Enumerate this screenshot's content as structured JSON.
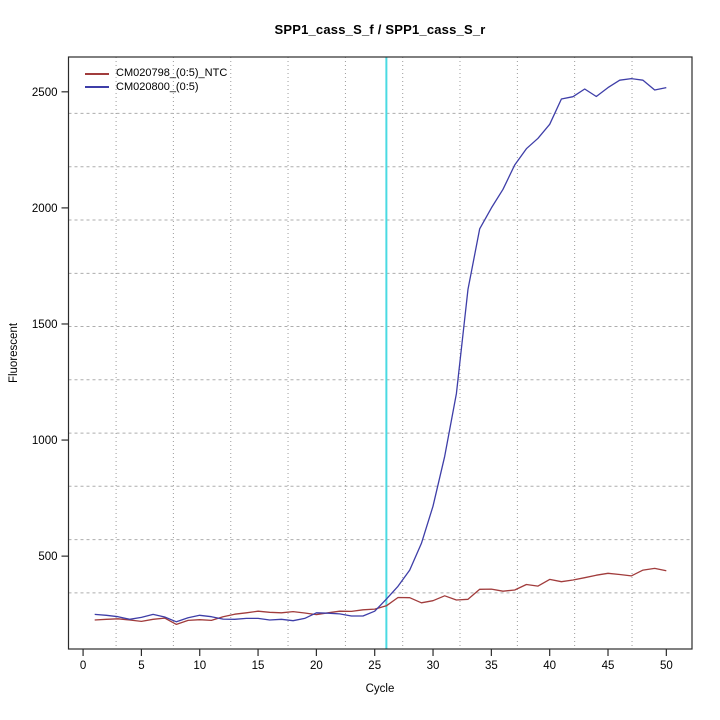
{
  "chart_data": {
    "type": "line",
    "title": "SPP1_cass_S_f / SPP1_cass_S_r",
    "xlabel": "Cycle",
    "ylabel": "Fluorescent",
    "xlim": [
      -1.25,
      52.2
    ],
    "ylim": [
      100,
      2650
    ],
    "x_ticks": [
      0,
      5,
      10,
      15,
      20,
      25,
      30,
      35,
      40,
      45,
      50
    ],
    "y_ticks": [
      500,
      1000,
      1500,
      2000,
      2500
    ],
    "grid": true,
    "x_gridlines": [
      2.83,
      7.74,
      12.66,
      17.57,
      22.49,
      27.4,
      32.31,
      37.23,
      42.14,
      47.06
    ],
    "y_gridlines": [
      342,
      571,
      801,
      1030,
      1260,
      1489,
      1718,
      1948,
      2177,
      2407
    ],
    "legend_position": "top-left",
    "threshold_line": {
      "x": 26,
      "color": "#4ADAE2"
    },
    "x": [
      1,
      2,
      3,
      4,
      5,
      6,
      7,
      8,
      9,
      10,
      11,
      12,
      13,
      14,
      15,
      16,
      17,
      18,
      19,
      20,
      21,
      22,
      23,
      24,
      25,
      26,
      27,
      28,
      29,
      30,
      31,
      32,
      33,
      34,
      35,
      36,
      37,
      38,
      39,
      40,
      41,
      42,
      43,
      44,
      45,
      46,
      47,
      48,
      49,
      50
    ],
    "series": [
      {
        "name": "CM020798_(0:5)_NTC",
        "color": "#A13C3C",
        "values": [
          225,
          228,
          230,
          225,
          219,
          228,
          233,
          206,
          223,
          226,
          223,
          239,
          250,
          256,
          263,
          258,
          256,
          261,
          255,
          248,
          256,
          263,
          262,
          269,
          272,
          286,
          322,
          321,
          299,
          308,
          329,
          311,
          314,
          357,
          358,
          349,
          354,
          378,
          371,
          400,
          390,
          397,
          407,
          418,
          426,
          421,
          415,
          440,
          447,
          437
        ]
      },
      {
        "name": "CM020800_(0:5)",
        "color": "#3E3EA8",
        "values": [
          249,
          245,
          239,
          228,
          236,
          249,
          238,
          217,
          235,
          245,
          239,
          229,
          228,
          232,
          232,
          225,
          228,
          222,
          232,
          256,
          254,
          251,
          242,
          242,
          263,
          315,
          370,
          440,
          555,
          715,
          930,
          1200,
          1650,
          1910,
          2000,
          2080,
          2185,
          2255,
          2300,
          2360,
          2469,
          2479,
          2512,
          2480,
          2518,
          2550,
          2557,
          2550,
          2508,
          2518
        ]
      }
    ],
    "colors": {
      "box": "#2B2B2B",
      "grid_h": "#ADADAD",
      "grid_v": "#9C9C9C",
      "background": "#FFFFFF"
    }
  }
}
